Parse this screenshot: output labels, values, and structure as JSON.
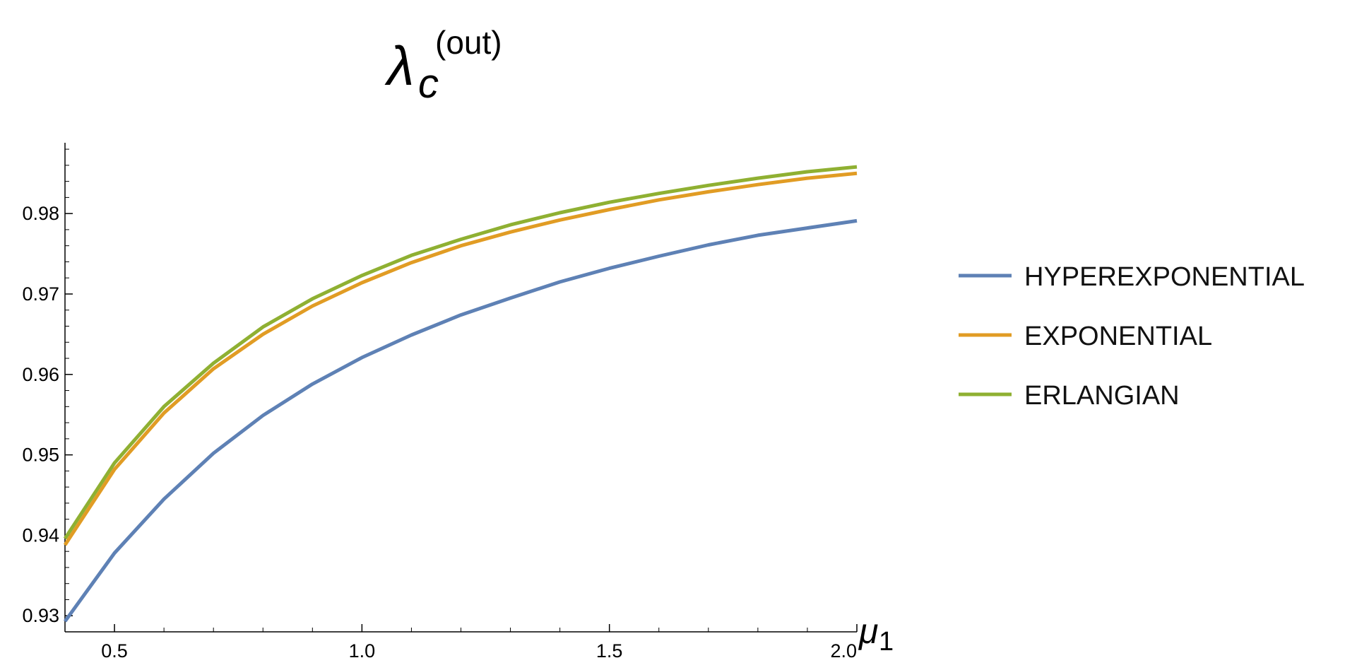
{
  "chart_data": {
    "type": "line",
    "title": {
      "main": "λ",
      "sub": "c",
      "sup": "(out)"
    },
    "xlabel": {
      "main": "μ",
      "sub": "1"
    },
    "ylabel": "",
    "xlim": [
      0.4,
      2.0
    ],
    "ylim": [
      0.928,
      0.9888
    ],
    "x_ticks": [
      {
        "value": 0.5,
        "label": "0.5"
      },
      {
        "value": 1.0,
        "label": "1.0"
      },
      {
        "value": 1.5,
        "label": "1.5"
      },
      {
        "value": 2.0,
        "label": "2.0"
      }
    ],
    "y_ticks": [
      {
        "value": 0.93,
        "label": "0.93"
      },
      {
        "value": 0.94,
        "label": "0.94"
      },
      {
        "value": 0.95,
        "label": "0.95"
      },
      {
        "value": 0.96,
        "label": "0.96"
      },
      {
        "value": 0.97,
        "label": "0.97"
      },
      {
        "value": 0.98,
        "label": "0.98"
      }
    ],
    "x": [
      0.4,
      0.5,
      0.6,
      0.7,
      0.8,
      0.9,
      1.0,
      1.1,
      1.2,
      1.3,
      1.4,
      1.5,
      1.6,
      1.7,
      1.8,
      1.9,
      2.0
    ],
    "series": [
      {
        "name": "HYPEREXPONENTIAL",
        "color": "#5e81b5",
        "values": [
          0.9293,
          0.9378,
          0.9445,
          0.9502,
          0.9549,
          0.9588,
          0.9621,
          0.9649,
          0.9674,
          0.9695,
          0.9715,
          0.9732,
          0.9747,
          0.9761,
          0.9773,
          0.9782,
          0.9791
        ]
      },
      {
        "name": "EXPONENTIAL",
        "color": "#e19c24",
        "values": [
          0.9388,
          0.9482,
          0.9552,
          0.9607,
          0.965,
          0.9685,
          0.9714,
          0.9739,
          0.976,
          0.9777,
          0.9792,
          0.9805,
          0.9817,
          0.9827,
          0.9836,
          0.9844,
          0.985
        ]
      },
      {
        "name": "ERLANGIAN",
        "color": "#8fb032",
        "values": [
          0.9396,
          0.949,
          0.956,
          0.9614,
          0.9659,
          0.9694,
          0.9723,
          0.9748,
          0.9768,
          0.9786,
          0.9801,
          0.9814,
          0.9825,
          0.9835,
          0.9844,
          0.9852,
          0.9858
        ]
      }
    ],
    "legend_position": "right"
  }
}
